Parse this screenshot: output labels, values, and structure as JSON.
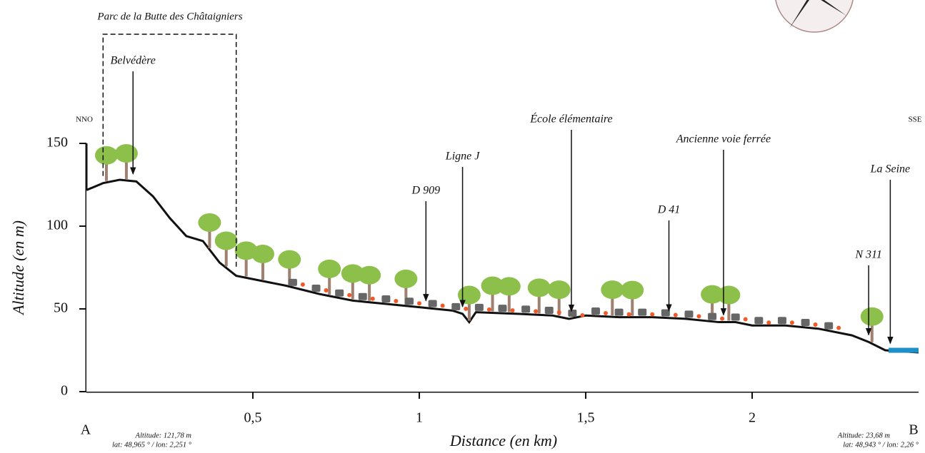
{
  "chart_data": {
    "type": "line",
    "x_label": "Distance (en km)",
    "y_label": "Altitude (en m)",
    "xlim": [
      0,
      2.5
    ],
    "ylim": [
      0,
      150
    ],
    "xticks": [
      {
        "value": 0.5,
        "label": "0,5"
      },
      1,
      {
        "value": 1.5,
        "label": "1,5"
      },
      2
    ],
    "yticks": [
      0,
      50,
      100,
      150
    ],
    "series": [
      {
        "color": "#111111",
        "x": [
          0,
          0.05,
          0.1,
          0.15,
          0.2,
          0.25,
          0.3,
          0.35,
          0.4,
          0.45,
          0.5,
          0.6,
          0.7,
          0.8,
          0.9,
          1.0,
          1.1,
          1.13,
          1.15,
          1.17,
          1.3,
          1.4,
          1.45,
          1.5,
          1.6,
          1.7,
          1.8,
          1.9,
          1.95,
          2.0,
          2.1,
          2.2,
          2.3,
          2.35,
          2.4,
          2.5
        ],
        "values": [
          121.78,
          126,
          128,
          127,
          118,
          105,
          94,
          91,
          78,
          70,
          68,
          64,
          59,
          55,
          53,
          51,
          49,
          47,
          42,
          48,
          47,
          46,
          44,
          46,
          45,
          45,
          44,
          42,
          42,
          40,
          40,
          38,
          34,
          30,
          25,
          23.68
        ]
      }
    ],
    "bracket": {
      "text": "Parc de la Butte des Châtaigniers",
      "x": [
        0.05,
        0.45
      ]
    },
    "annotations": [
      {
        "text": "Belvédère",
        "x": 0.14
      },
      {
        "text": "D 909",
        "x": 1.02
      },
      {
        "text": "Ligne J",
        "x": 1.13
      },
      {
        "text": "École élémentaire",
        "x": 1.457
      },
      {
        "text": "D 41",
        "x": 1.75
      },
      {
        "text": "Ancienne voie ferrée",
        "x": 1.914
      },
      {
        "text": "N 311",
        "x": 2.35
      },
      {
        "text": "La Seine",
        "x": 2.415
      }
    ],
    "start": {
      "label": "A",
      "direction": "NNO",
      "altitude": "Altitude: 121,78 m",
      "coords": "lat: 48,965 ° / lon: 2,251 °"
    },
    "end": {
      "label": "B",
      "direction": "SSE",
      "altitude": "Altitude: 23,68 m",
      "coords": "lat: 48,943 ° / lon: 2,26 °"
    }
  }
}
